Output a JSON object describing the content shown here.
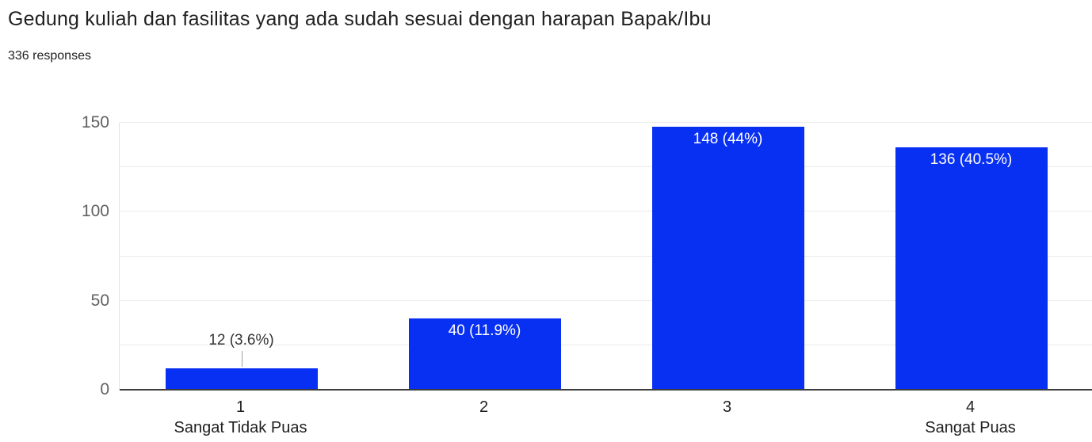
{
  "chart_data": {
    "type": "bar",
    "title": "Gedung kuliah dan fasilitas yang ada sudah sesuai dengan harapan Bapak/Ibu",
    "subtitle": "336 responses",
    "categories": [
      "1",
      "2",
      "3",
      "4"
    ],
    "category_sublabels": [
      "Sangat Tidak Puas",
      "",
      "",
      "Sangat Puas"
    ],
    "values": [
      12,
      40,
      148,
      136
    ],
    "value_labels": [
      "12 (3.6%)",
      "40 (11.9%)",
      "148 (44%)",
      "136 (40.5%)"
    ],
    "ylim": [
      0,
      150
    ],
    "yticks": [
      0,
      50,
      100,
      150
    ],
    "gridline_step": 25,
    "grid": true,
    "legend": "none",
    "xlabel": "",
    "ylabel": "",
    "colors": {
      "bar": "#0830f2",
      "label_inside": "#ffffff",
      "label_outside": "#333333",
      "axis_line": "#3c3c3c",
      "gridline": "#ebebeb",
      "y_tick_text": "#616161",
      "x_tick_text": "#1f1f1f"
    }
  }
}
